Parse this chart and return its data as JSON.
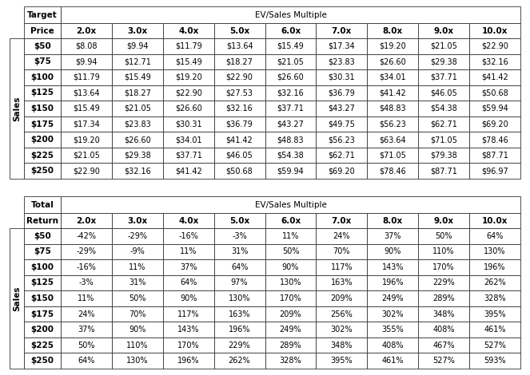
{
  "table1": {
    "title_label": "Target",
    "col_header_label": "EV/Sales Multiple",
    "row_header_label": "Price",
    "side_label": "Sales",
    "col_headers": [
      "2.0x",
      "3.0x",
      "4.0x",
      "5.0x",
      "6.0x",
      "7.0x",
      "8.0x",
      "9.0x",
      "10.0x"
    ],
    "row_headers": [
      "$50",
      "$75",
      "$100",
      "$125",
      "$150",
      "$175",
      "$200",
      "$225",
      "$250"
    ],
    "data": [
      [
        "$8.08",
        "$9.94",
        "$11.79",
        "$13.64",
        "$15.49",
        "$17.34",
        "$19.20",
        "$21.05",
        "$22.90"
      ],
      [
        "$9.94",
        "$12.71",
        "$15.49",
        "$18.27",
        "$21.05",
        "$23.83",
        "$26.60",
        "$29.38",
        "$32.16"
      ],
      [
        "$11.79",
        "$15.49",
        "$19.20",
        "$22.90",
        "$26.60",
        "$30.31",
        "$34.01",
        "$37.71",
        "$41.42"
      ],
      [
        "$13.64",
        "$18.27",
        "$22.90",
        "$27.53",
        "$32.16",
        "$36.79",
        "$41.42",
        "$46.05",
        "$50.68"
      ],
      [
        "$15.49",
        "$21.05",
        "$26.60",
        "$32.16",
        "$37.71",
        "$43.27",
        "$48.83",
        "$54.38",
        "$59.94"
      ],
      [
        "$17.34",
        "$23.83",
        "$30.31",
        "$36.79",
        "$43.27",
        "$49.75",
        "$56.23",
        "$62.71",
        "$69.20"
      ],
      [
        "$19.20",
        "$26.60",
        "$34.01",
        "$41.42",
        "$48.83",
        "$56.23",
        "$63.64",
        "$71.05",
        "$78.46"
      ],
      [
        "$21.05",
        "$29.38",
        "$37.71",
        "$46.05",
        "$54.38",
        "$62.71",
        "$71.05",
        "$79.38",
        "$87.71"
      ],
      [
        "$22.90",
        "$32.16",
        "$41.42",
        "$50.68",
        "$59.94",
        "$69.20",
        "$78.46",
        "$87.71",
        "$96.97"
      ]
    ]
  },
  "table2": {
    "title_label": "Total",
    "col_header_label": "EV/Sales Multiple",
    "row_header_label": "Return",
    "side_label": "Sales",
    "col_headers": [
      "2.0x",
      "3.0x",
      "4.0x",
      "5.0x",
      "6.0x",
      "7.0x",
      "8.0x",
      "9.0x",
      "10.0x"
    ],
    "row_headers": [
      "$50",
      "$75",
      "$100",
      "$125",
      "$150",
      "$175",
      "$200",
      "$225",
      "$250"
    ],
    "data": [
      [
        "-42%",
        "-29%",
        "-16%",
        "-3%",
        "11%",
        "24%",
        "37%",
        "50%",
        "64%"
      ],
      [
        "-29%",
        "-9%",
        "11%",
        "31%",
        "50%",
        "70%",
        "90%",
        "110%",
        "130%"
      ],
      [
        "-16%",
        "11%",
        "37%",
        "64%",
        "90%",
        "117%",
        "143%",
        "170%",
        "196%"
      ],
      [
        "-3%",
        "31%",
        "64%",
        "97%",
        "130%",
        "163%",
        "196%",
        "229%",
        "262%"
      ],
      [
        "11%",
        "50%",
        "90%",
        "130%",
        "170%",
        "209%",
        "249%",
        "289%",
        "328%"
      ],
      [
        "24%",
        "70%",
        "117%",
        "163%",
        "209%",
        "256%",
        "302%",
        "348%",
        "395%"
      ],
      [
        "37%",
        "90%",
        "143%",
        "196%",
        "249%",
        "302%",
        "355%",
        "408%",
        "461%"
      ],
      [
        "50%",
        "110%",
        "170%",
        "229%",
        "289%",
        "348%",
        "408%",
        "467%",
        "527%"
      ],
      [
        "64%",
        "130%",
        "196%",
        "262%",
        "328%",
        "395%",
        "461%",
        "527%",
        "593%"
      ]
    ]
  },
  "bg_color": "#ffffff",
  "border_color": "#333333",
  "cell_bg": "#ffffff",
  "text_color": "#000000"
}
